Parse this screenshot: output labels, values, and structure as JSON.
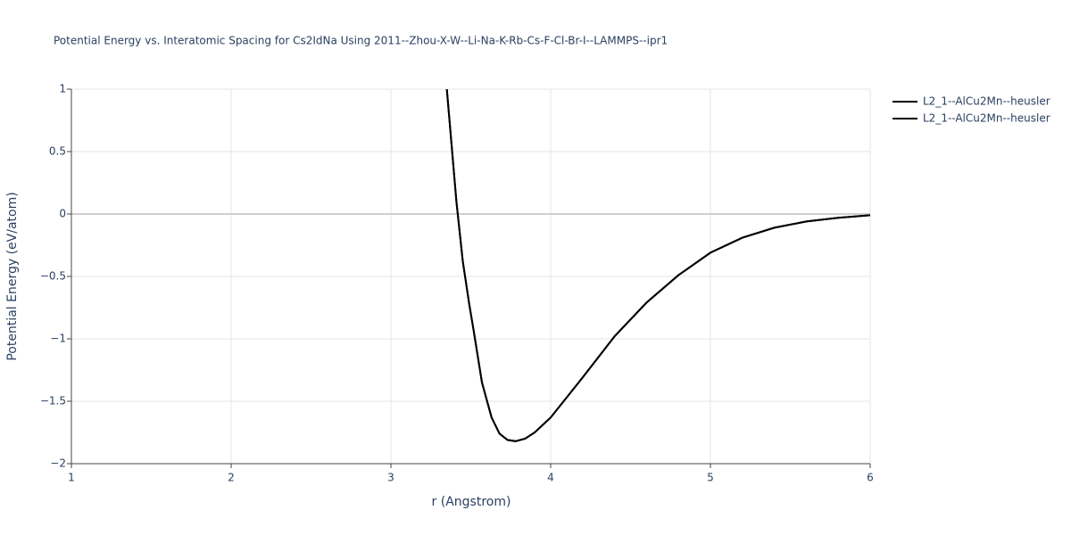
{
  "chart_data": {
    "type": "line",
    "title": "Potential Energy vs. Interatomic Spacing for Cs2IdNa Using 2011--Zhou-X-W--Li-Na-K-Rb-Cs-F-Cl-Br-I--LAMMPS--ipr1",
    "x_label": "r (Angstrom)",
    "y_label": "Potential Energy (eV/atom)",
    "x": [
      3.35,
      3.38,
      3.41,
      3.45,
      3.49,
      3.52,
      3.57,
      3.63,
      3.68,
      3.73,
      3.78,
      3.84,
      3.9,
      4.0,
      4.2,
      4.4,
      4.6,
      4.8,
      5.0,
      5.2,
      5.4,
      5.6,
      5.8,
      6.0
    ],
    "series": [
      {
        "name": "L2_1--AlCu2Mn--heusler",
        "color": "#000000",
        "values": [
          1.0,
          0.55,
          0.1,
          -0.38,
          -0.72,
          -0.95,
          -1.35,
          -1.63,
          -1.76,
          -1.81,
          -1.82,
          -1.8,
          -1.75,
          -1.63,
          -1.31,
          -0.98,
          -0.71,
          -0.49,
          -0.31,
          -0.19,
          -0.11,
          -0.06,
          -0.03,
          -0.01
        ]
      },
      {
        "name": "L2_1--AlCu2Mn--heusler",
        "color": "#000000",
        "values": [
          1.0,
          0.55,
          0.1,
          -0.38,
          -0.72,
          -0.95,
          -1.35,
          -1.63,
          -1.76,
          -1.81,
          -1.82,
          -1.8,
          -1.75,
          -1.63,
          -1.31,
          -0.98,
          -0.71,
          -0.49,
          -0.31,
          -0.19,
          -0.11,
          -0.06,
          -0.03,
          -0.01
        ]
      }
    ],
    "xlim": [
      1,
      6
    ],
    "xticks": [
      1,
      2,
      3,
      4,
      5,
      6
    ],
    "ylim": [
      -2,
      1
    ],
    "yticks": [
      {
        "value": -2,
        "label": "−2"
      },
      {
        "value": -1.5,
        "label": "−1.5"
      },
      {
        "value": -1,
        "label": "−1"
      },
      {
        "value": -0.5,
        "label": "−0.5"
      },
      0,
      0.5,
      1
    ],
    "grid": true,
    "legend": "outside-right"
  }
}
